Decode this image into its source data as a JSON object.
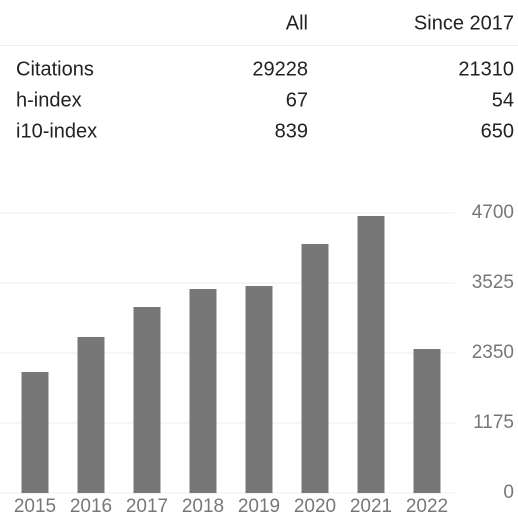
{
  "table": {
    "columns": [
      "All",
      "Since 2017"
    ],
    "rows": [
      {
        "label": "Citations",
        "values": [
          29228,
          21310
        ]
      },
      {
        "label": "h-index",
        "values": [
          67,
          54
        ]
      },
      {
        "label": "i10-index",
        "values": [
          839,
          650
        ]
      }
    ]
  },
  "chart_data": {
    "type": "bar",
    "categories": [
      "2015",
      "2016",
      "2017",
      "2018",
      "2019",
      "2020",
      "2021",
      "2022"
    ],
    "values": [
      2031,
      2619,
      3122,
      3424,
      3475,
      4180,
      4650,
      2417
    ],
    "color": "#777777",
    "ylim": [
      0,
      4700
    ],
    "yticks": [
      0,
      1175,
      2350,
      3525,
      4700
    ],
    "grid": true
  }
}
